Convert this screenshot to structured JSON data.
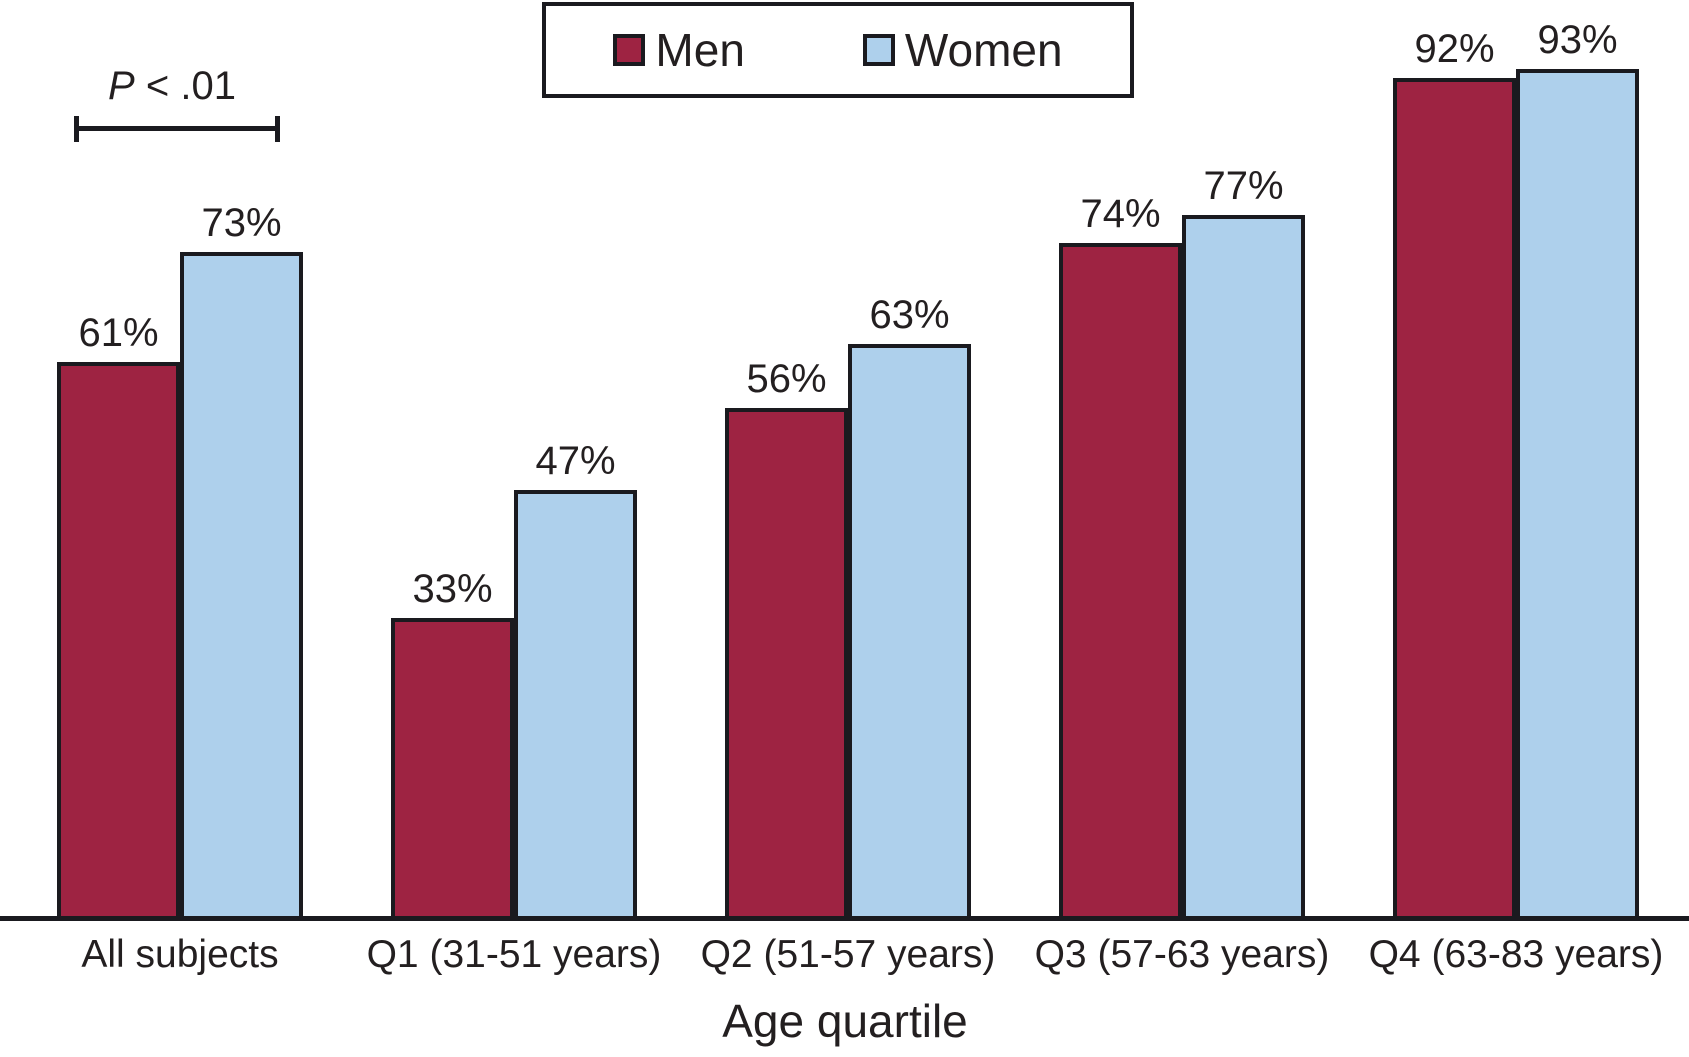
{
  "chart_data": {
    "type": "bar",
    "title": "",
    "xlabel": "Age quartile",
    "ylabel": "",
    "ylim": [
      0,
      100
    ],
    "grid": false,
    "legend_position": "top-center",
    "value_label_format": "percent",
    "categories": [
      "All subjects",
      "Q1 (31-51 years)",
      "Q2 (51-57 years)",
      "Q3 (57-63 years)",
      "Q4 (63-83 years)"
    ],
    "series": [
      {
        "name": "Men",
        "color": "#9E2342",
        "values": [
          61,
          33,
          56,
          74,
          92
        ],
        "value_labels": [
          "61%",
          "33%",
          "56%",
          "74%",
          "92%"
        ]
      },
      {
        "name": "Women",
        "color": "#AED0EC",
        "values": [
          73,
          47,
          63,
          77,
          93
        ],
        "value_labels": [
          "73%",
          "47%",
          "63%",
          "77%",
          "93%"
        ]
      }
    ],
    "annotations": [
      {
        "text": "P < .01"
      }
    ]
  },
  "annotation": {
    "text": "P < .01",
    "p_symbol": "P",
    "rest": " < .01"
  },
  "legend": {
    "items": [
      "Men",
      "Women"
    ]
  },
  "colors": {
    "men": "#9E2342",
    "women": "#AED0EC",
    "ink": "#1A1A1F",
    "text": "#231F20",
    "background": "#FFFFFF"
  }
}
